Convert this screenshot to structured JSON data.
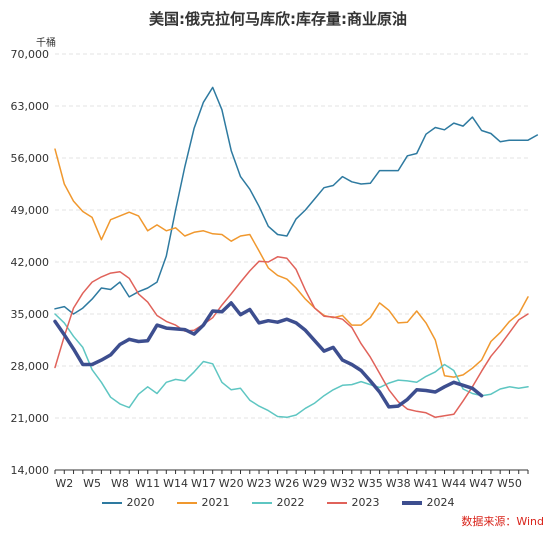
{
  "chart_data": {
    "type": "line",
    "title": "美国:俄克拉何马库欣:库存量:商业原油",
    "unit": "千桶",
    "source": "数据来源：Wind",
    "x_ticks": [
      "W2",
      "W5",
      "W8",
      "W11",
      "W14",
      "W17",
      "W20",
      "W23",
      "W26",
      "W29",
      "W32",
      "W35",
      "W38",
      "W41",
      "W44",
      "W47",
      "W50"
    ],
    "x_tick_weeks": [
      2,
      5,
      8,
      11,
      14,
      17,
      20,
      23,
      26,
      29,
      32,
      35,
      38,
      41,
      44,
      47,
      50
    ],
    "xlim": [
      1,
      52
    ],
    "ylim": [
      14000,
      70000
    ],
    "y_ticks": [
      14000,
      21000,
      28000,
      35000,
      42000,
      49000,
      56000,
      63000,
      70000
    ],
    "y_tick_labels": [
      "14,000",
      "21,000",
      "28,000",
      "35,000",
      "42,000",
      "49,000",
      "56,000",
      "63,000",
      "70,000"
    ],
    "grid": true,
    "legend_position": "bottom",
    "series": [
      {
        "name": "2020",
        "color": "#2e7aa0",
        "values": [
          35700,
          36000,
          35000,
          35800,
          37000,
          38500,
          38300,
          39300,
          37300,
          38000,
          38500,
          39300,
          42800,
          49000,
          54800,
          60000,
          63500,
          65500,
          62500,
          57000,
          53500,
          51800,
          49500,
          46800,
          45700,
          45500,
          47800,
          49000,
          50500,
          52000,
          52300,
          53500,
          52800,
          52500,
          52600,
          54300,
          54300,
          54300,
          56300,
          56600,
          59200,
          60100,
          59800,
          60700,
          60300,
          61500,
          59700,
          59300,
          58200,
          58400,
          58400,
          58400,
          59100
        ]
      },
      {
        "name": "2021",
        "color": "#f0982e",
        "values": [
          57200,
          52500,
          50200,
          48800,
          48000,
          45000,
          47700,
          48200,
          48700,
          48200,
          46200,
          47000,
          46200,
          46600,
          45500,
          46000,
          46200,
          45800,
          45700,
          44800,
          45500,
          45700,
          43500,
          41200,
          40200,
          39700,
          38500,
          37000,
          35800,
          34800,
          34500,
          34800,
          33500,
          33500,
          34500,
          36500,
          35500,
          33800,
          33900,
          35400,
          33800,
          31500,
          26700,
          26500,
          26800,
          27700,
          28800,
          31300,
          32500,
          34000,
          35000,
          37300
        ]
      },
      {
        "name": "2022",
        "color": "#5ec6c2",
        "values": [
          35000,
          33800,
          32000,
          30500,
          27500,
          25800,
          23800,
          22900,
          22400,
          24200,
          25200,
          24300,
          25800,
          26200,
          26000,
          27200,
          28600,
          28300,
          25800,
          24800,
          25000,
          23400,
          22600,
          22000,
          21200,
          21100,
          21400,
          22300,
          23000,
          24000,
          24800,
          25400,
          25500,
          25900,
          25500,
          25100,
          25700,
          26100,
          26000,
          25800,
          26600,
          27200,
          28200,
          27400,
          24900,
          24300,
          24000,
          24200,
          24900,
          25200,
          25000,
          25200
        ]
      },
      {
        "name": "2023",
        "color": "#e0625a",
        "values": [
          27800,
          32000,
          35800,
          37800,
          39300,
          40000,
          40500,
          40700,
          39800,
          37700,
          36600,
          34800,
          34000,
          33500,
          32700,
          32800,
          33600,
          34500,
          36200,
          37700,
          39300,
          40800,
          42100,
          42000,
          42700,
          42500,
          41000,
          38200,
          35800,
          34700,
          34600,
          34300,
          33200,
          31000,
          29200,
          27000,
          24800,
          23200,
          22200,
          21900,
          21700,
          21100,
          21300,
          21500,
          23300,
          25200,
          27300,
          29300,
          30800,
          32500,
          34200,
          35000
        ]
      },
      {
        "name": "2024",
        "color": "#3d4e8f",
        "bold": true,
        "values": [
          34000,
          32200,
          30300,
          28200,
          28200,
          28800,
          29500,
          30900,
          31600,
          31300,
          31400,
          33500,
          33100,
          33000,
          32900,
          32300,
          33500,
          35400,
          35300,
          36500,
          34900,
          35600,
          33800,
          34100,
          33900,
          34300,
          33800,
          32800,
          31400,
          30000,
          30500,
          28800,
          28200,
          27400,
          26000,
          24500,
          22500,
          22600,
          23500,
          24800,
          24700,
          24500,
          25200,
          25800,
          25400,
          25000,
          24000
        ]
      }
    ]
  }
}
